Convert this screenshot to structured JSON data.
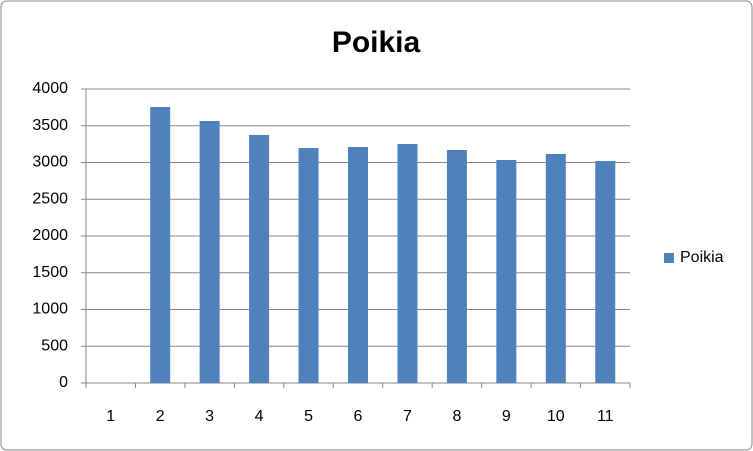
{
  "chart_data": {
    "type": "bar",
    "title": "Poikia",
    "categories": [
      "1",
      "2",
      "3",
      "4",
      "5",
      "6",
      "7",
      "8",
      "9",
      "10",
      "11"
    ],
    "series": [
      {
        "name": "Poikia",
        "color": "#4f81bd",
        "values": [
          null,
          3755,
          3565,
          3374,
          3197,
          3211,
          3252,
          3170,
          3034,
          3116,
          3020
        ]
      }
    ],
    "ylim": [
      0,
      4000
    ],
    "yticks": [
      0,
      500,
      1000,
      1500,
      2000,
      2500,
      3000,
      3500,
      4000
    ],
    "grid": true,
    "legend": "right"
  }
}
